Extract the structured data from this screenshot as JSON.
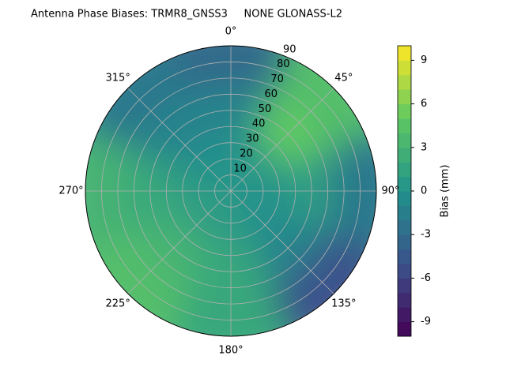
{
  "chart_data": {
    "type": "polar_contour",
    "title": "Antenna Phase Biases: TRMR8_GNSS3     NONE GLONASS-L2",
    "colorbar_label": "Bias (mm)",
    "azimuths": [
      0,
      45,
      90,
      135,
      180,
      225,
      270,
      315
    ],
    "radii": [
      20,
      50,
      80
    ],
    "values": [
      [
        0,
        1,
        0,
        0,
        1,
        1,
        1,
        0
      ],
      [
        -1,
        5,
        1,
        -1,
        2,
        3,
        2,
        -1
      ],
      [
        -3,
        4,
        -2,
        -5,
        2,
        4,
        3,
        -2
      ]
    ],
    "rlim": [
      0,
      90
    ],
    "rticks": [
      10,
      20,
      30,
      40,
      50,
      60,
      70,
      80,
      90
    ],
    "thetaticks": [
      {
        "value": 0,
        "label": "0°"
      },
      {
        "value": 45,
        "label": "45°"
      },
      {
        "value": 90,
        "label": "90°"
      },
      {
        "value": 135,
        "label": "135°"
      },
      {
        "value": 180,
        "label": "180°"
      },
      {
        "value": 225,
        "label": "225°"
      },
      {
        "value": 270,
        "label": "270°"
      },
      {
        "value": 315,
        "label": "315°"
      }
    ],
    "clim": [
      -10,
      10
    ],
    "cticks": [
      -9,
      -6,
      -3,
      0,
      3,
      6,
      9
    ],
    "colormap": [
      "#440154",
      "#3b528b",
      "#21918c",
      "#5ec962",
      "#fde725"
    ],
    "grid": true
  }
}
